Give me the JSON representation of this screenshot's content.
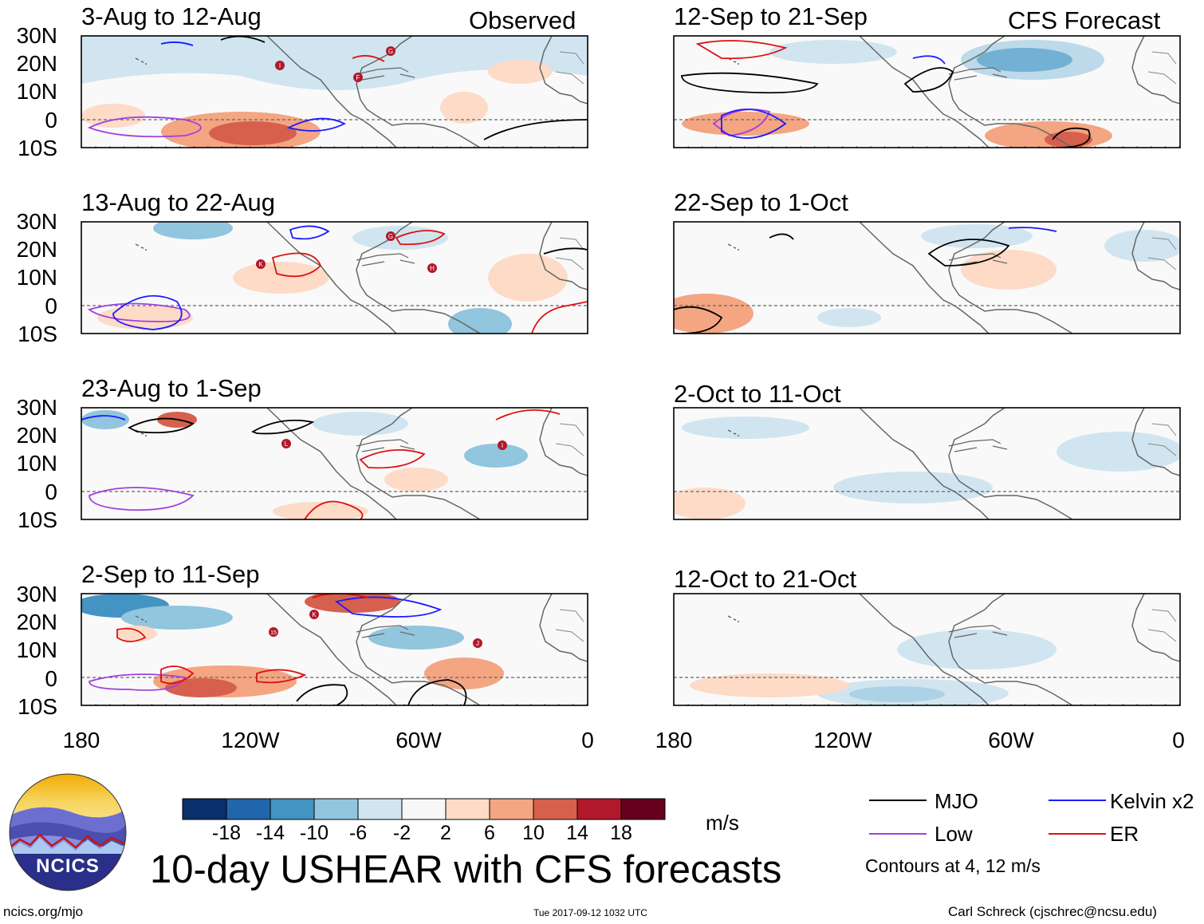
{
  "labels": {
    "observed": "Observed",
    "forecast": "CFS Forecast",
    "lat_ticks": [
      "30N",
      "20N",
      "10N",
      "0",
      "10S"
    ],
    "lon_ticks": [
      "180",
      "120W",
      "60W",
      "0"
    ]
  },
  "panels": [
    {
      "title": "3-Aug to 12-Aug",
      "kind": "observed",
      "storms": [
        "G",
        "I",
        "F"
      ]
    },
    {
      "title": "13-Aug to 22-Aug",
      "kind": "observed",
      "storms": [
        "G",
        "K",
        "H"
      ]
    },
    {
      "title": "23-Aug to 1-Sep",
      "kind": "observed",
      "storms": [
        "L",
        "I"
      ]
    },
    {
      "title": "2-Sep to 11-Sep",
      "kind": "observed",
      "storms": [
        "K",
        "15",
        "J"
      ]
    },
    {
      "title": "12-Sep to 21-Sep",
      "kind": "forecast"
    },
    {
      "title": "22-Sep to 1-Oct",
      "kind": "forecast"
    },
    {
      "title": "2-Oct to 11-Oct",
      "kind": "forecast"
    },
    {
      "title": "12-Oct to 21-Oct",
      "kind": "forecast"
    }
  ],
  "colorbar": {
    "unit": "m/s",
    "tick_labels": [
      "-18",
      "-14",
      "-10",
      "-6",
      "-2",
      "2",
      "6",
      "10",
      "14",
      "18"
    ],
    "colors": [
      "#08306b",
      "#2166ac",
      "#4393c3",
      "#92c5de",
      "#d1e5f0",
      "#f7f7f7",
      "#fddbc7",
      "#f4a582",
      "#d6604d",
      "#b2182b",
      "#67001f"
    ]
  },
  "legend": {
    "items": [
      {
        "label": "MJO",
        "color": "#000000"
      },
      {
        "label": "Kelvin x2",
        "color": "#1a1aff"
      },
      {
        "label": "Low",
        "color": "#a040e0"
      },
      {
        "label": "ER",
        "color": "#e01010"
      }
    ],
    "note": "Contours at 4, 12 m/s"
  },
  "title": "10-day USHEAR with CFS forecasts",
  "logo": {
    "text": "NCICS"
  },
  "footer": {
    "left": "ncics.org/mjo",
    "center": "Tue 2017-09-12 1032 UTC",
    "right": "Carl Schreck (cjschrec@ncsu.edu)"
  }
}
